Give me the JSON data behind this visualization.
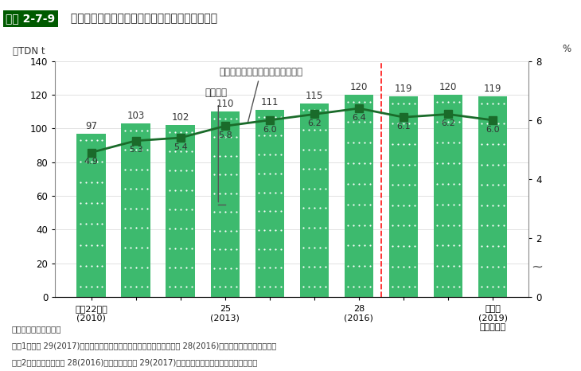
{
  "title_box": "図表 2-7-9",
  "title_main": " エコフィードの製造数量と濃厚飼料に占める割合",
  "ylabel_left": "万TDN t",
  "ylabel_right": "%",
  "bar_values": [
    97,
    103,
    102,
    110,
    111,
    115,
    120,
    119,
    120,
    119
  ],
  "line_values": [
    4.9,
    5.3,
    5.4,
    5.8,
    6.0,
    6.2,
    6.4,
    6.1,
    6.2,
    6.0
  ],
  "bar_color": "#3dba6e",
  "bar_dot_color": "#ffffff",
  "line_color": "#1a6b2a",
  "line_segment1_idx": [
    0,
    1,
    2,
    3,
    4,
    5,
    6
  ],
  "line_segment2_idx": [
    6,
    7,
    8,
    9
  ],
  "ylim_left": [
    0,
    140
  ],
  "ylim_right": [
    0,
    8
  ],
  "yticks_left": [
    0,
    20,
    40,
    60,
    80,
    100,
    120,
    140
  ],
  "yticks_right": [
    0,
    2,
    4,
    6,
    8
  ],
  "dashed_line_x": 6.5,
  "annotation_bar_text": "製造数量",
  "annotation_line_text": "濃厚飼料に占める割合（右目盛）",
  "xtick_labels": [
    "平成22年度\n(2010)",
    "",
    "",
    "25\n(2013)",
    "",
    "",
    "28\n(2016)",
    "",
    "",
    "令和元\n(2019)\n（概算値）"
  ],
  "source_text": "資料：農林水産省作成",
  "note1": "注：1）平成 29(2017)年度の集計から対象品目が減少したため、平成 28(2016)年度以前とは連続しない。",
  "note2": "　　2）赤点線は、平成 28(2016)年度以前と平成 29(2017)年度以降で連続性がないことを示す。",
  "background_color": "#ffffff",
  "title_box_bg": "#005a00",
  "title_box_fg": "#ffffff",
  "title_main_color": "#222222",
  "bar_width": 0.65
}
